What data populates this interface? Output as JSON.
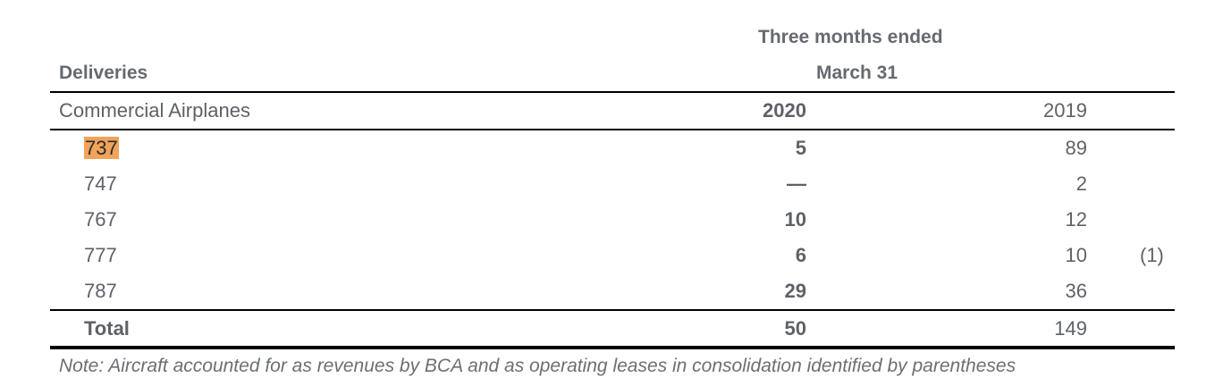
{
  "header": {
    "period_line1": "Three months ended",
    "period_line2": "March 31",
    "row_label": "Deliveries"
  },
  "subheader": {
    "segment": "Commercial Airplanes",
    "year_current": "2020",
    "year_prior": "2019"
  },
  "rows": [
    {
      "model": "737",
      "v2020": "5",
      "v2019": "89",
      "lease": ""
    },
    {
      "model": "747",
      "v2020": "—",
      "v2019": "2",
      "lease": ""
    },
    {
      "model": "767",
      "v2020": "10",
      "v2019": "12",
      "lease": ""
    },
    {
      "model": "777",
      "v2020": "6",
      "v2019": "10",
      "lease": "(1)"
    },
    {
      "model": "787",
      "v2020": "29",
      "v2019": "36",
      "lease": ""
    }
  ],
  "total": {
    "label": "Total",
    "v2020": "50",
    "v2019": "149"
  },
  "note": "Note: Aircraft accounted for as revenues by BCA and as operating leases in consolidation identified by parentheses",
  "colors": {
    "highlight": "#f0a35a",
    "text": "#5e6268"
  }
}
